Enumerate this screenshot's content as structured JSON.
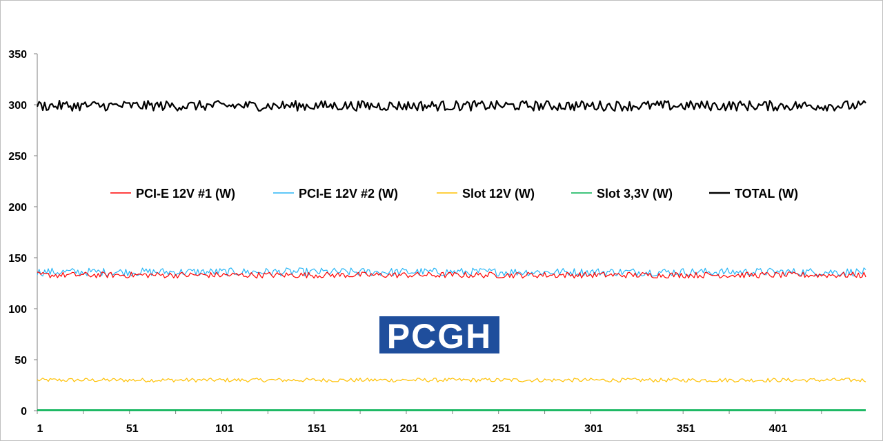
{
  "chart_data": {
    "type": "line",
    "title": "",
    "xlabel": "",
    "ylabel": "",
    "ylim": [
      0,
      350
    ],
    "y_ticks": [
      "0",
      "50",
      "100",
      "150",
      "200",
      "250",
      "300",
      "350"
    ],
    "x_ticks": [
      "1",
      "51",
      "101",
      "151",
      "201",
      "251",
      "301",
      "351",
      "401"
    ],
    "x_range": [
      1,
      450
    ],
    "grid": false,
    "legend_position": "center",
    "series": [
      {
        "name": "PCI-E 12V #1 (W)",
        "color": "#ff0000",
        "mean": 133,
        "noise": 3,
        "values_note": ""
      },
      {
        "name": "PCI-E 12V #2 (W)",
        "color": "#29b6f6",
        "mean": 136,
        "noise": 4
      },
      {
        "name": "Slot 12V (W)",
        "color": "#ffc000",
        "mean": 30,
        "noise": 2
      },
      {
        "name": "Slot 3,3V (W)",
        "color": "#00b050",
        "mean": 0.5,
        "noise": 0
      },
      {
        "name": "TOTAL (W)",
        "color": "#000000",
        "mean": 299,
        "noise": 5
      }
    ]
  },
  "logo": {
    "text": "PCGH",
    "color": "#1f4e9c"
  }
}
